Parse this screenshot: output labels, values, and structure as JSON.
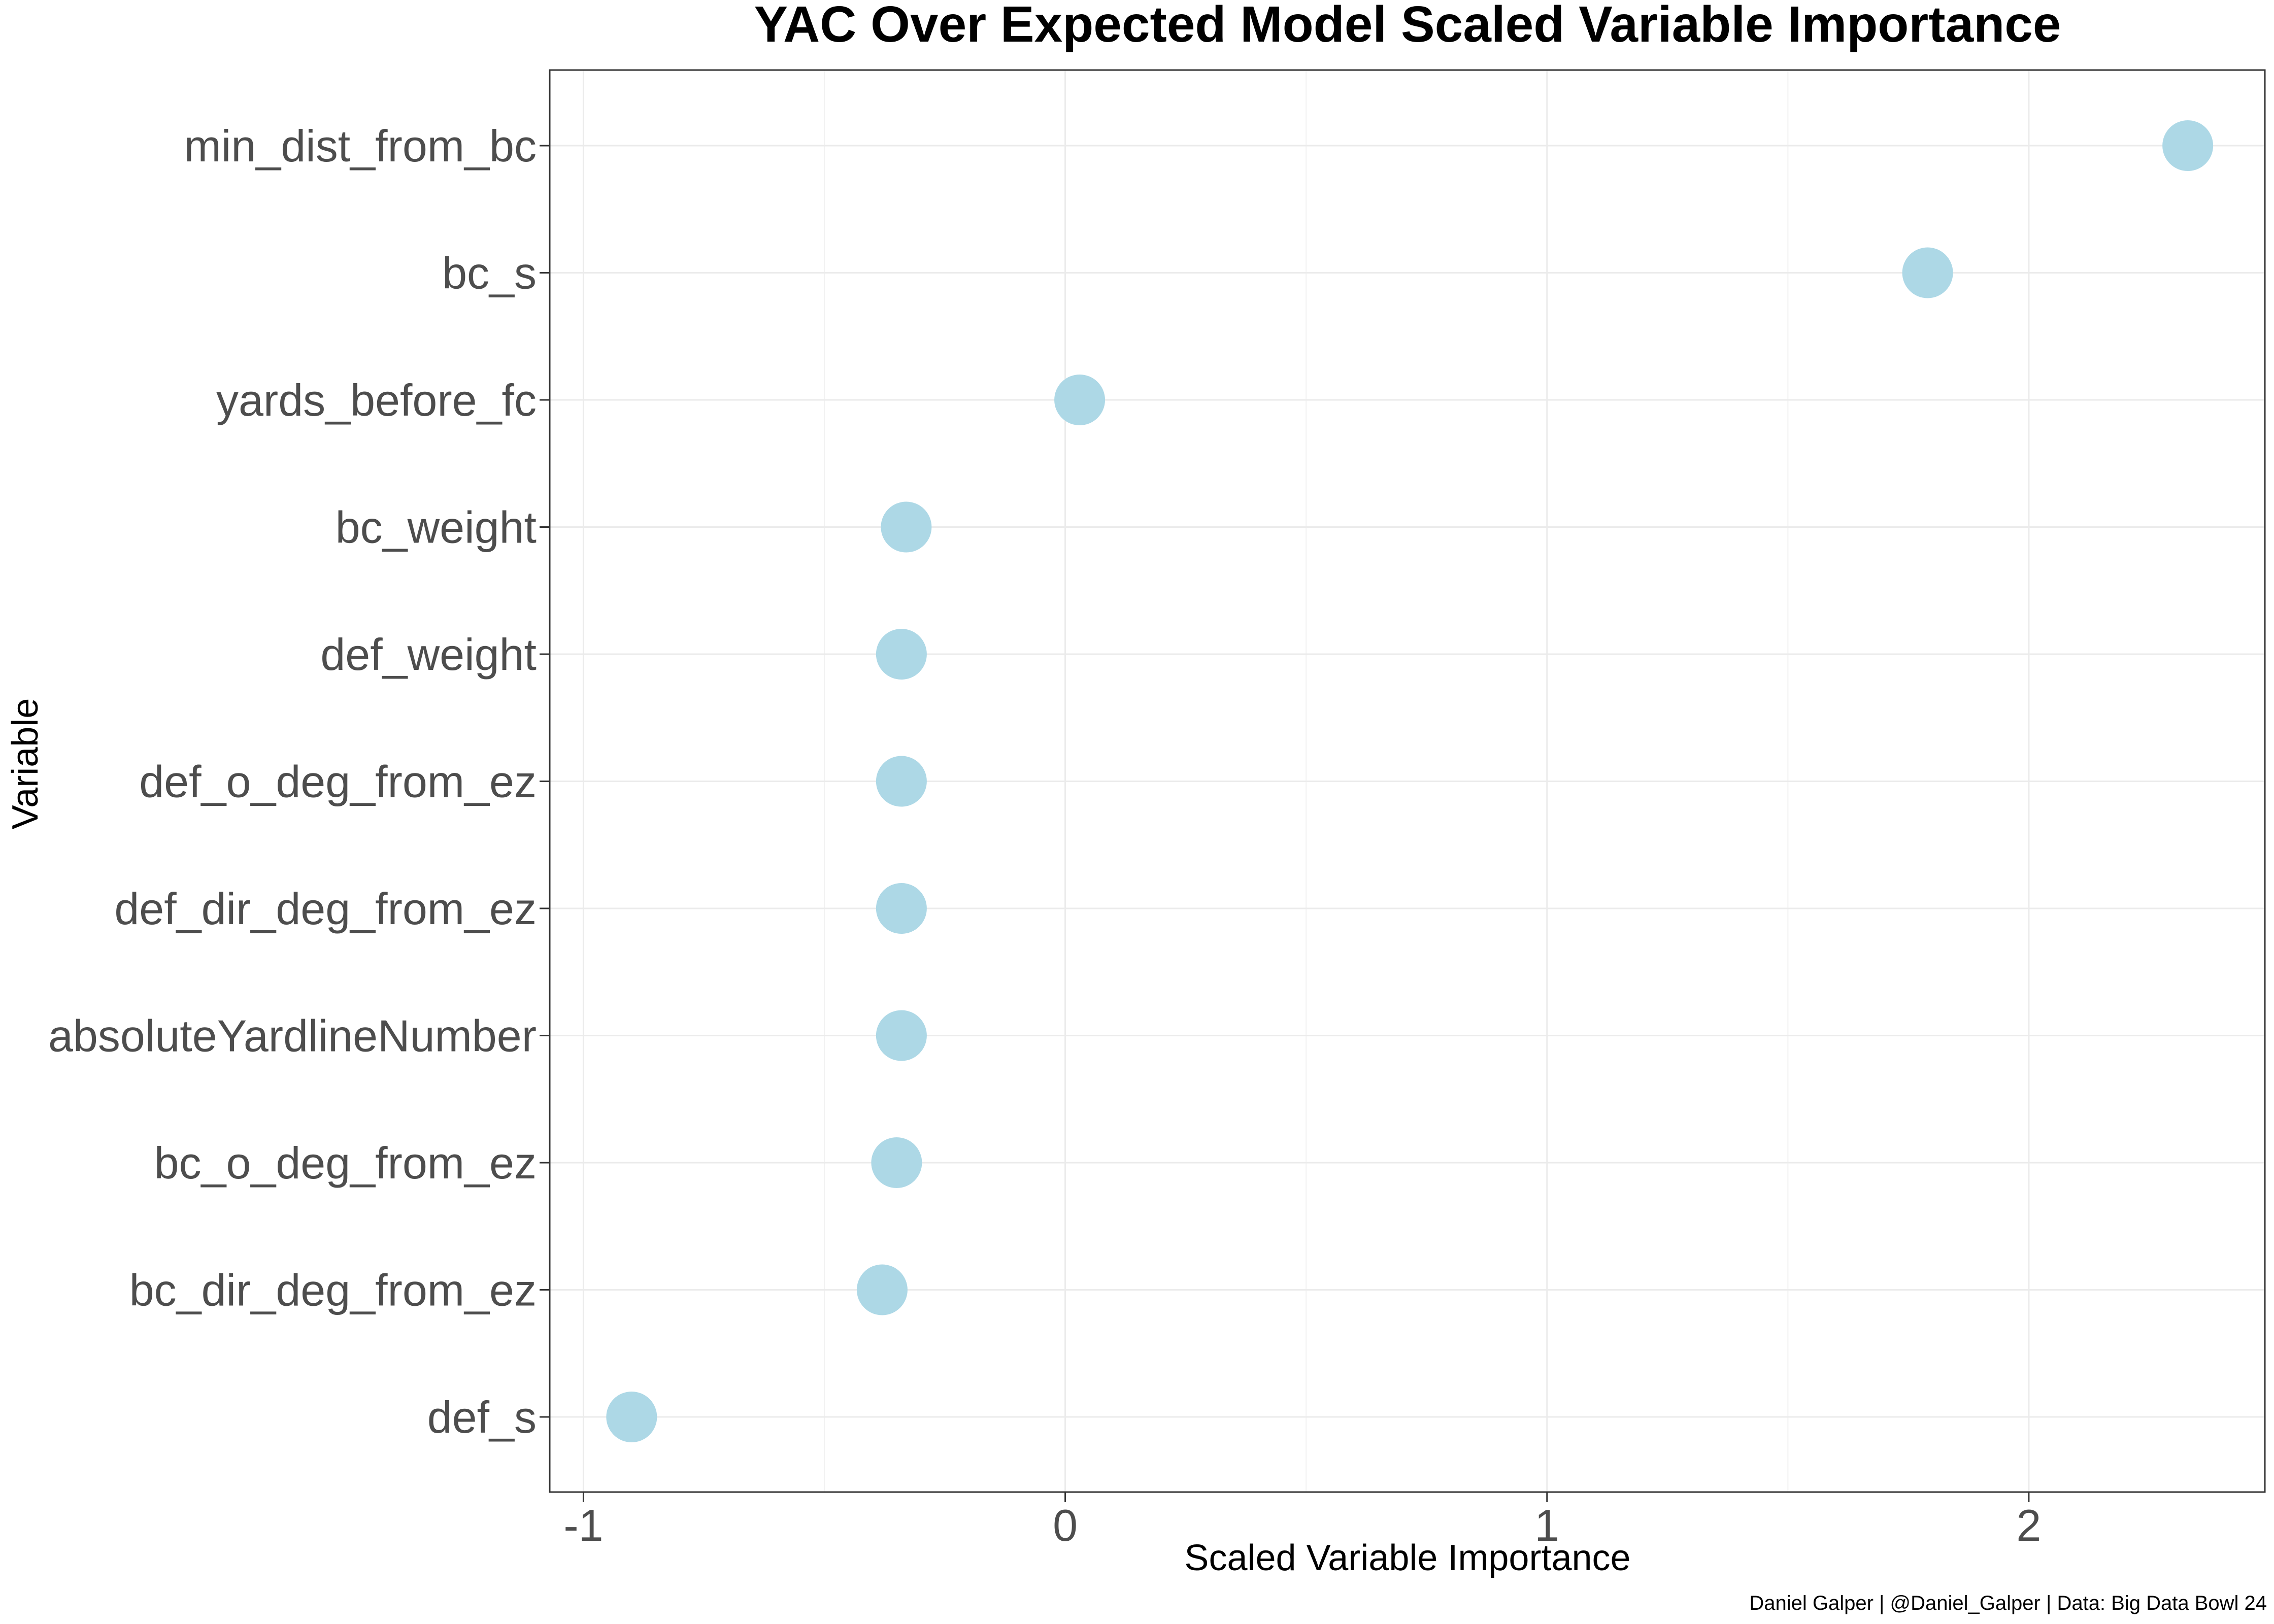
{
  "chart_data": {
    "type": "scatter",
    "title": "YAC Over Expected Model Scaled Variable Importance",
    "xlabel": "Scaled Variable Importance",
    "ylabel": "Variable",
    "caption": "Daniel Galper | @Daniel_Galper | Data: Big Data Bowl 24",
    "xlim": [
      -1.07,
      2.49
    ],
    "x_ticks": [
      -1,
      0,
      1,
      2
    ],
    "x_tick_labels": [
      "-1",
      "0",
      "1",
      "2"
    ],
    "grid": true,
    "point_color": "#add8e6",
    "points": [
      {
        "label": "min_dist_from_bc",
        "value": 2.33
      },
      {
        "label": "bc_s",
        "value": 1.79
      },
      {
        "label": "yards_before_fc",
        "value": 0.03
      },
      {
        "label": "bc_weight",
        "value": -0.33
      },
      {
        "label": "def_weight",
        "value": -0.34
      },
      {
        "label": "def_o_deg_from_ez",
        "value": -0.34
      },
      {
        "label": "def_dir_deg_from_ez",
        "value": -0.34
      },
      {
        "label": "absoluteYardlineNumber",
        "value": -0.34
      },
      {
        "label": "bc_o_deg_from_ez",
        "value": -0.35
      },
      {
        "label": "bc_dir_deg_from_ez",
        "value": -0.38
      },
      {
        "label": "def_s",
        "value": -0.9
      }
    ]
  }
}
